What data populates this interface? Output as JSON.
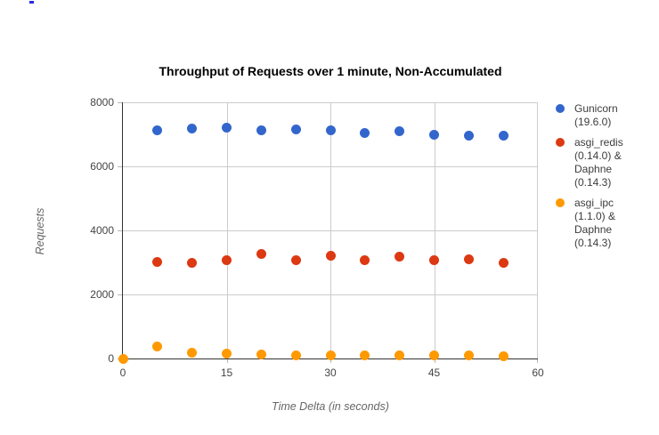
{
  "artifacts": {
    "blue_speck_color": "#2a2ae0"
  },
  "colors": {
    "gridline": "#cccccc",
    "axis_line": "#333333",
    "tick_label": "#444444",
    "axis_title": "#666666",
    "legend_text": "#3c3c3c"
  },
  "chart_data": {
    "type": "scatter",
    "title": "Throughput of Requests over 1 minute, Non-Accumulated",
    "xlabel": "Time Delta (in seconds)",
    "ylabel": "Requests",
    "xlim": [
      0,
      60
    ],
    "ylim": [
      0,
      8000
    ],
    "x_ticks": [
      0,
      15,
      30,
      45,
      60
    ],
    "y_ticks": [
      0,
      2000,
      4000,
      6000,
      8000
    ],
    "grid": true,
    "legend_position": "right",
    "series": [
      {
        "name": "Gunicorn (19.6.0)",
        "color": "#3366CC",
        "x": [
          5,
          10,
          15,
          20,
          25,
          30,
          35,
          40,
          45,
          50,
          55
        ],
        "y": [
          7130,
          7190,
          7220,
          7130,
          7150,
          7120,
          7030,
          7100,
          7000,
          6970,
          6960
        ]
      },
      {
        "name": "asgi_redis (0.14.0) & Daphne (0.14.3)",
        "color": "#DC3912",
        "x": [
          5,
          10,
          15,
          20,
          25,
          30,
          35,
          40,
          45,
          50,
          55
        ],
        "y": [
          3020,
          2980,
          3080,
          3260,
          3080,
          3200,
          3080,
          3190,
          3080,
          3090,
          2990
        ]
      },
      {
        "name": "asgi_ipc (1.1.0) & Daphne (0.14.3)",
        "color": "#FF9900",
        "x": [
          0,
          5,
          10,
          15,
          20,
          25,
          30,
          35,
          40,
          45,
          50,
          55
        ],
        "y": [
          0,
          370,
          180,
          140,
          120,
          105,
          100,
          90,
          90,
          85,
          85,
          80
        ]
      }
    ]
  }
}
